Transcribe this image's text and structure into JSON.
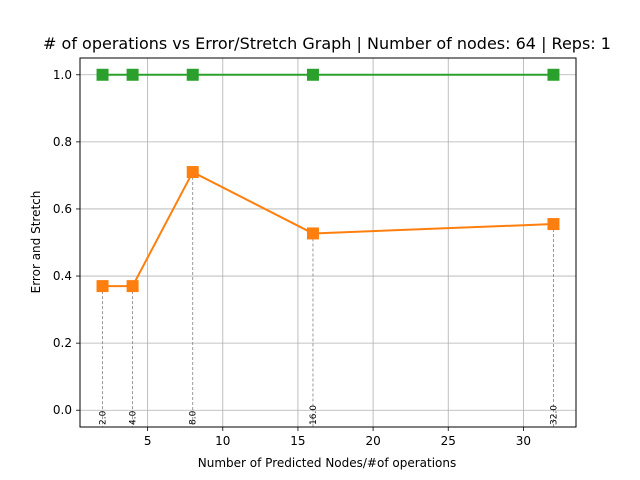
{
  "chart_data": {
    "type": "line",
    "title": "# of operations vs Error/Stretch Graph | Number of nodes: 64 | Reps: 1",
    "xlabel": "Number of Predicted Nodes/#of operations",
    "ylabel": "Error and Stretch",
    "xlim": [
      0.5,
      33.5
    ],
    "ylim": [
      -0.05,
      1.05
    ],
    "xticks": [
      5,
      10,
      15,
      20,
      25,
      30
    ],
    "yticks": [
      0.0,
      0.2,
      0.4,
      0.6,
      0.8,
      1.0
    ],
    "xtick_labels": [
      "5",
      "10",
      "15",
      "20",
      "25",
      "30"
    ],
    "ytick_labels": [
      "0.0",
      "0.2",
      "0.4",
      "0.6",
      "0.8",
      "1.0"
    ],
    "grid": true,
    "x": [
      2,
      4,
      8,
      16,
      32
    ],
    "x_labels": [
      "2.0",
      "4.0",
      "8.0",
      "16.0",
      "32.0"
    ],
    "series": [
      {
        "color": "#ff7f0e",
        "values": [
          0.37,
          0.37,
          0.71,
          0.527,
          0.555
        ]
      },
      {
        "color": "#2ca02c",
        "values": [
          1.0,
          1.0,
          1.0,
          1.0,
          1.0
        ]
      }
    ]
  }
}
